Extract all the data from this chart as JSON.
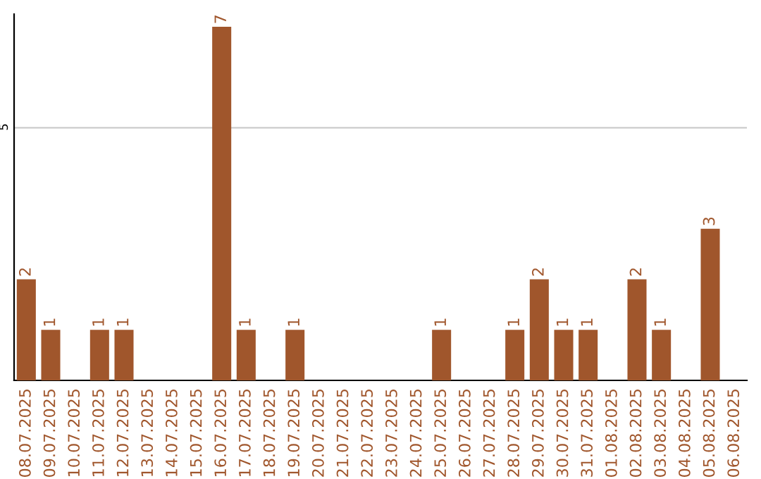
{
  "chart_data": {
    "type": "bar",
    "categories": [
      "08.07.2025",
      "09.07.2025",
      "10.07.2025",
      "11.07.2025",
      "12.07.2025",
      "13.07.2025",
      "14.07.2025",
      "15.07.2025",
      "16.07.2025",
      "17.07.2025",
      "18.07.2025",
      "19.07.2025",
      "20.07.2025",
      "21.07.2025",
      "22.07.2025",
      "23.07.2025",
      "24.07.2025",
      "25.07.2025",
      "26.07.2025",
      "27.07.2025",
      "28.07.2025",
      "29.07.2025",
      "30.07.2025",
      "31.07.2025",
      "01.08.2025",
      "02.08.2025",
      "03.08.2025",
      "04.08.2025",
      "05.08.2025",
      "06.08.2025"
    ],
    "values": [
      2,
      1,
      0,
      1,
      1,
      0,
      0,
      0,
      7,
      1,
      0,
      1,
      0,
      0,
      0,
      0,
      0,
      1,
      0,
      0,
      1,
      2,
      1,
      1,
      0,
      2,
      1,
      0,
      3,
      0
    ],
    "value_labels": [
      "2",
      "1",
      null,
      "1",
      "1",
      null,
      null,
      null,
      "7",
      "1",
      null,
      "1",
      null,
      null,
      null,
      null,
      null,
      "1",
      null,
      null,
      "1",
      "2",
      "1",
      "1",
      null,
      "2",
      "1",
      null,
      "3",
      null
    ],
    "color": "#a0562c",
    "ylim": [
      0,
      7.25
    ],
    "yticks": [
      5
    ],
    "grid": "y"
  }
}
